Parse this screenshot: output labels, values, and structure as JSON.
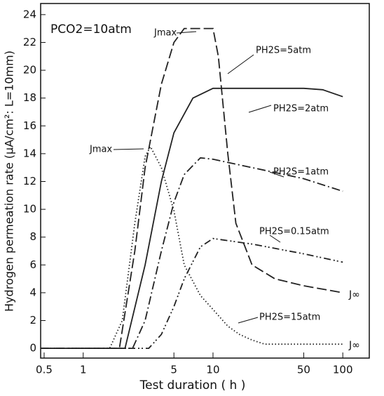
{
  "chart_data": {
    "type": "line",
    "annotations": [
      "PCO2=10atm",
      "Jmax",
      "Jmax",
      "J∞",
      "J∞"
    ],
    "x_label": "Test duration ( h )",
    "y_label": "Hydrogen permeation rate (μA/cm²: L=10mm)",
    "log_x": true,
    "xlim": [
      0.47,
      160
    ],
    "xticks": [
      0.5,
      1,
      5,
      10,
      50,
      100
    ],
    "ylim": [
      -0.7,
      24.8
    ],
    "yticks": [
      0,
      2,
      4,
      6,
      8,
      10,
      12,
      14,
      16,
      18,
      20,
      22,
      24
    ],
    "grid": false,
    "series": [
      {
        "name": "PH2S=15atm",
        "color": "#222222",
        "dash": "dotted",
        "x": [
          0.47,
          1,
          1.6,
          2,
          2.5,
          3,
          3.3,
          4,
          5,
          6,
          8,
          10,
          13,
          16,
          20,
          25,
          40,
          100
        ],
        "values": [
          0,
          0,
          0,
          2,
          9,
          13.8,
          14.5,
          13,
          9.9,
          6,
          3.8,
          2.8,
          1.6,
          1,
          0.6,
          0.3,
          0.3,
          0.3
        ]
      },
      {
        "name": "PH2S=5atm",
        "color": "#222222",
        "dash": "dashed",
        "x": [
          0.47,
          1.9,
          2.5,
          3,
          4,
          5,
          6,
          7,
          10,
          11,
          13,
          15,
          20,
          30,
          50,
          100
        ],
        "values": [
          0,
          0,
          7,
          13,
          19,
          22,
          23,
          23,
          23,
          21,
          14,
          9,
          6,
          5,
          4.5,
          4
        ]
      },
      {
        "name": "PH2S=2atm",
        "color": "#222222",
        "dash": "solid",
        "x": [
          0.47,
          2.1,
          3,
          4,
          5,
          7,
          10,
          50,
          70,
          100
        ],
        "values": [
          0,
          0,
          6,
          12,
          15.5,
          18,
          18.7,
          18.7,
          18.6,
          18.1
        ]
      },
      {
        "name": "PH2S=1atm",
        "color": "#222222",
        "dash": "dashdot",
        "x": [
          0.47,
          2.4,
          3,
          4,
          5,
          6,
          8,
          10,
          20,
          50,
          100
        ],
        "values": [
          0,
          0,
          2,
          7,
          10.5,
          12.5,
          13.7,
          13.6,
          13,
          12.2,
          11.3
        ]
      },
      {
        "name": "PH2S=0.15atm",
        "color": "#222222",
        "dash": "dashdotdot",
        "x": [
          0.47,
          3.2,
          4,
          5,
          6,
          8,
          10,
          20,
          50,
          100
        ],
        "values": [
          0,
          0,
          1,
          3,
          5,
          7.3,
          7.9,
          7.5,
          6.8,
          6.2
        ]
      }
    ]
  }
}
